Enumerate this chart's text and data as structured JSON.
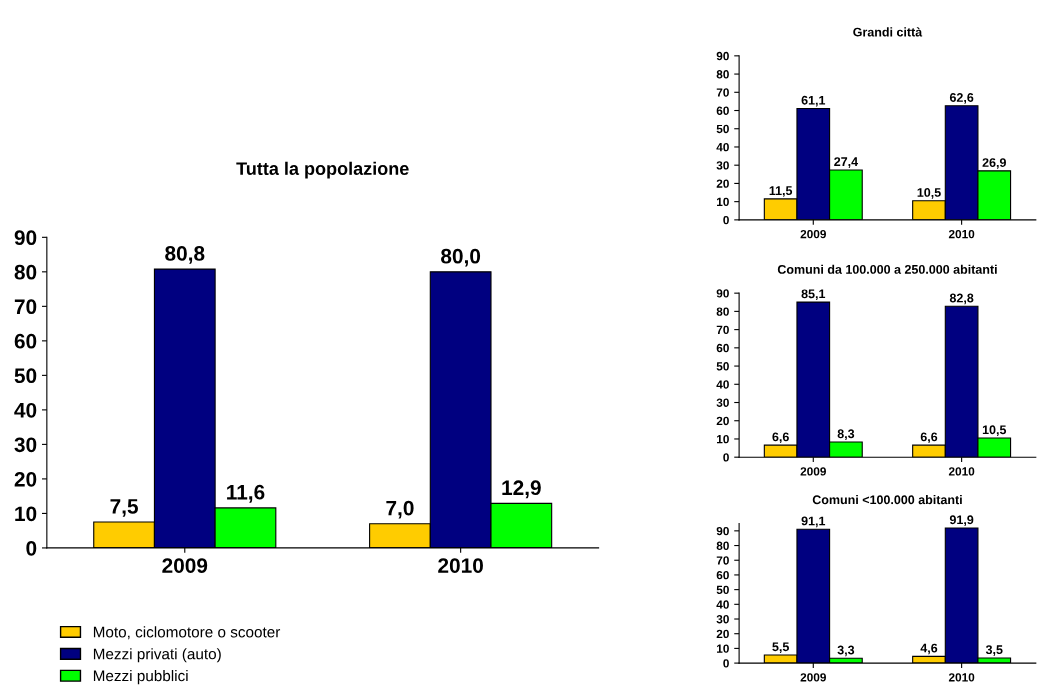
{
  "chart_data": [
    {
      "type": "bar",
      "title": "Tutta la popolazione",
      "categories": [
        "2009",
        "2010"
      ],
      "ylim": [
        0,
        90
      ],
      "yticks": [
        0,
        10,
        20,
        30,
        40,
        50,
        60,
        70,
        80,
        90
      ],
      "legend": "bottom left",
      "series": [
        {
          "name": "Moto, ciclomotore o scooter",
          "color": "#ffcc00",
          "values": [
            7.5,
            7.0
          ],
          "value_labels": [
            "7,5",
            "7,0"
          ]
        },
        {
          "name": "Mezzi privati (auto)",
          "color": "#000080",
          "values": [
            80.8,
            80.0
          ],
          "value_labels": [
            "80,8",
            "80,0"
          ]
        },
        {
          "name": "Mezzi pubblici",
          "color": "#00ff00",
          "values": [
            11.6,
            12.9
          ],
          "value_labels": [
            "11,6",
            "12,9"
          ]
        }
      ]
    },
    {
      "type": "bar",
      "title": "Grandi città",
      "categories": [
        "2009",
        "2010"
      ],
      "ylim": [
        0,
        90
      ],
      "yticks": [
        0,
        10,
        20,
        30,
        40,
        50,
        60,
        70,
        80,
        90
      ],
      "series": [
        {
          "color": "#ffcc00",
          "values": [
            11.5,
            10.5
          ],
          "value_labels": [
            "11,5",
            "10,5"
          ]
        },
        {
          "color": "#000080",
          "values": [
            61.1,
            62.6
          ],
          "value_labels": [
            "61,1",
            "62,6"
          ]
        },
        {
          "color": "#00ff00",
          "values": [
            27.4,
            26.9
          ],
          "value_labels": [
            "27,4",
            "26,9"
          ]
        }
      ]
    },
    {
      "type": "bar",
      "title": "Comuni da 100.000 a 250.000 abitanti",
      "categories": [
        "2009",
        "2010"
      ],
      "ylim": [
        0,
        90
      ],
      "yticks": [
        0,
        10,
        20,
        30,
        40,
        50,
        60,
        70,
        80,
        90
      ],
      "series": [
        {
          "color": "#ffcc00",
          "values": [
            6.6,
            6.6
          ],
          "value_labels": [
            "6,6",
            "6,6"
          ]
        },
        {
          "color": "#000080",
          "values": [
            85.1,
            82.8
          ],
          "value_labels": [
            "85,1",
            "82,8"
          ]
        },
        {
          "color": "#00ff00",
          "values": [
            8.3,
            10.5
          ],
          "value_labels": [
            "8,3",
            "10,5"
          ]
        }
      ]
    },
    {
      "type": "bar",
      "title": "Comuni <100.000 abitanti",
      "categories": [
        "2009",
        "2010"
      ],
      "ylim": [
        0,
        95
      ],
      "yticks": [
        0,
        10,
        20,
        30,
        40,
        50,
        60,
        70,
        80,
        90
      ],
      "series": [
        {
          "color": "#ffcc00",
          "values": [
            5.5,
            4.6
          ],
          "value_labels": [
            "5,5",
            "4,6"
          ]
        },
        {
          "color": "#000080",
          "values": [
            91.1,
            91.9
          ],
          "value_labels": [
            "91,1",
            "91,9"
          ]
        },
        {
          "color": "#00ff00",
          "values": [
            3.3,
            3.5
          ],
          "value_labels": [
            "3,3",
            "3,5"
          ]
        }
      ]
    }
  ]
}
